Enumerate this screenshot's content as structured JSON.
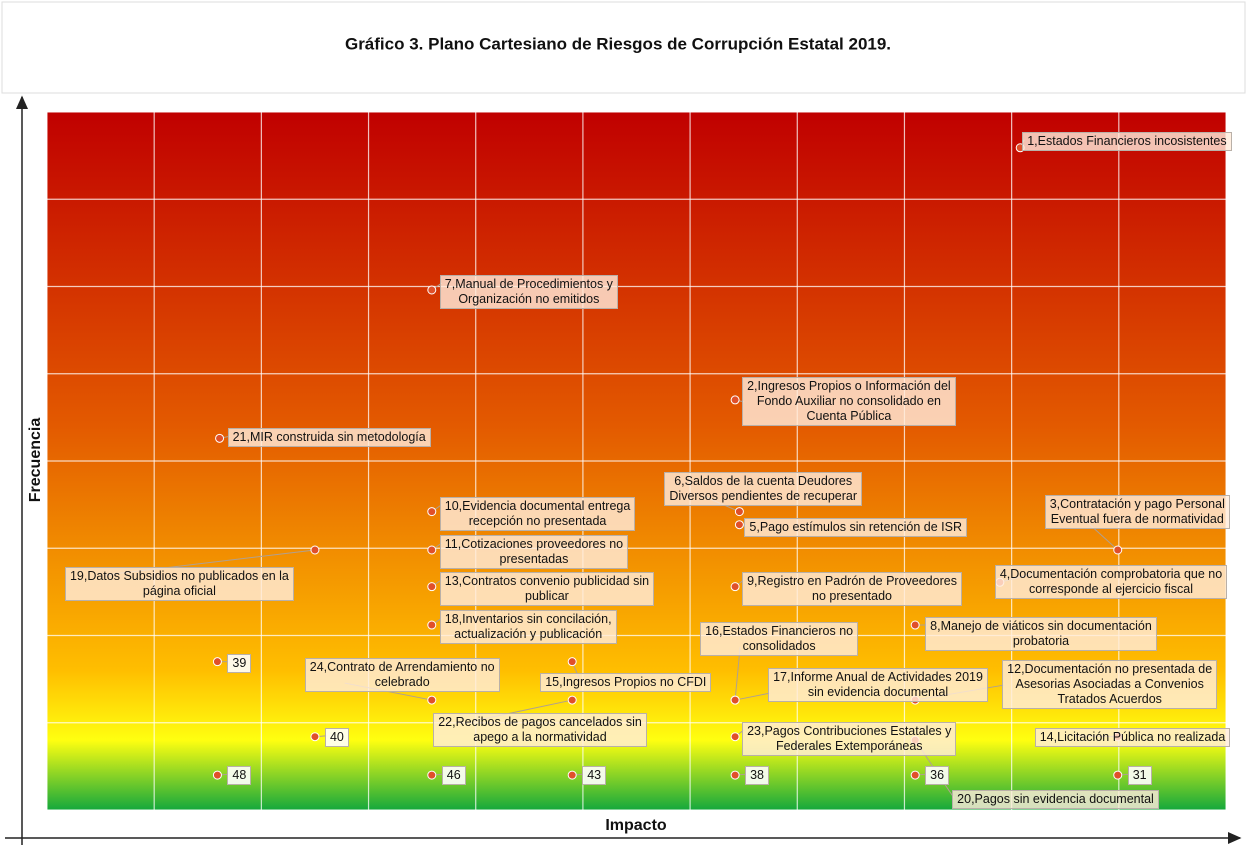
{
  "chart_data": {
    "type": "scatter",
    "title": "Gráfico 3. Plano Cartesiano de Riesgos de Corrupción Estatal 2019.",
    "x_label": "Impacto",
    "y_label": "Frecuencia",
    "xlim": [
      0,
      11
    ],
    "ylim": [
      0,
      8
    ],
    "xticks": [
      0,
      1,
      2,
      3,
      4,
      5,
      6,
      7,
      8,
      9,
      10,
      11
    ],
    "yticks": [
      0,
      1,
      2,
      3,
      4,
      5,
      6,
      7,
      8
    ],
    "grid": true,
    "color": "#e0502a",
    "points": [
      {
        "label": "1,Estados Financieros incosistentes",
        "x": 9.08,
        "y": 7.59
      },
      {
        "label": "7,Manual de Procedimientos y\nOrganización no emitidos",
        "x": 3.59,
        "y": 5.96
      },
      {
        "label": "2,Ingresos Propios o Información del\nFondo Auxiliar no consolidado en\nCuenta Pública",
        "x": 6.42,
        "y": 4.7
      },
      {
        "label": "21,MIR construida sin metodología",
        "x": 1.61,
        "y": 4.26
      },
      {
        "label": "6,Saldos de la cuenta Deudores\nDiversos pendientes de recuperar",
        "x": 6.46,
        "y": 3.42
      },
      {
        "label": "5,Pago estímulos sin retención de ISR",
        "x": 6.46,
        "y": 3.27
      },
      {
        "label": "10,Evidencia documental entrega\nrecepción no presentada",
        "x": 3.59,
        "y": 3.42
      },
      {
        "label": "3,Contratación y pago Personal\nEventual fuera de normatividad",
        "x": 9.99,
        "y": 2.98
      },
      {
        "label": "11,Cotizaciones proveedores no\npresentadas",
        "x": 3.59,
        "y": 2.98
      },
      {
        "label": "19,Datos Subsidios no publicados en la\npágina oficial",
        "x": 2.5,
        "y": 2.98
      },
      {
        "label": "13,Contratos convenio publicidad sin\npublicar",
        "x": 3.59,
        "y": 2.56
      },
      {
        "label": "9,Registro en Padrón de Proveedores\nno presentado",
        "x": 6.42,
        "y": 2.56
      },
      {
        "label": "4,Documentación comprobatoria que no\ncorresponde al ejercicio fiscal",
        "x": 8.89,
        "y": 2.61
      },
      {
        "label": "18,Inventarios sin concilación,\nactualización y publicación",
        "x": 3.59,
        "y": 2.12
      },
      {
        "label": "8,Manejo de viáticos sin documentación\nprobatoria",
        "x": 8.1,
        "y": 2.12
      },
      {
        "label": "39",
        "x": 1.59,
        "y": 1.7
      },
      {
        "label": "16,Estados Financieros no\nconsolidados",
        "x": 6.42,
        "y": 1.26
      },
      {
        "label": "17,Informe Anual de Actividades 2019\nsin evidencia documental",
        "x": 6.42,
        "y": 1.26
      },
      {
        "label": "24,Contrato de Arrendamiento no\ncelebrado",
        "x": 3.59,
        "y": 1.26
      },
      {
        "label": "15,Ingresos Propios no CFDI",
        "x": 4.9,
        "y": 1.7
      },
      {
        "label": "22,Recibos de pagos cancelados sin\napego a la normatividad",
        "x": 4.9,
        "y": 1.26
      },
      {
        "label": "12,Documentación no presentada de\nAsesorias Asociadas a Convenios\nTratados Acuerdos",
        "x": 8.1,
        "y": 1.26
      },
      {
        "label": "40",
        "x": 2.5,
        "y": 0.84
      },
      {
        "label": "23,Pagos Contribuciones Estatales y\nFederales Extemporáneas",
        "x": 6.42,
        "y": 0.84
      },
      {
        "label": "14,Licitación Pública no realizada",
        "x": 9.99,
        "y": 0.84
      },
      {
        "label": "48",
        "x": 1.59,
        "y": 0.4
      },
      {
        "label": "46",
        "x": 3.59,
        "y": 0.4
      },
      {
        "label": "43",
        "x": 4.9,
        "y": 0.4
      },
      {
        "label": "38",
        "x": 6.42,
        "y": 0.4
      },
      {
        "label": "36",
        "x": 8.1,
        "y": 0.4
      },
      {
        "label": "31",
        "x": 9.99,
        "y": 0.4
      },
      {
        "label": "20,Pagos sin evidencia documental",
        "x": 8.1,
        "y": 0.8
      }
    ]
  }
}
